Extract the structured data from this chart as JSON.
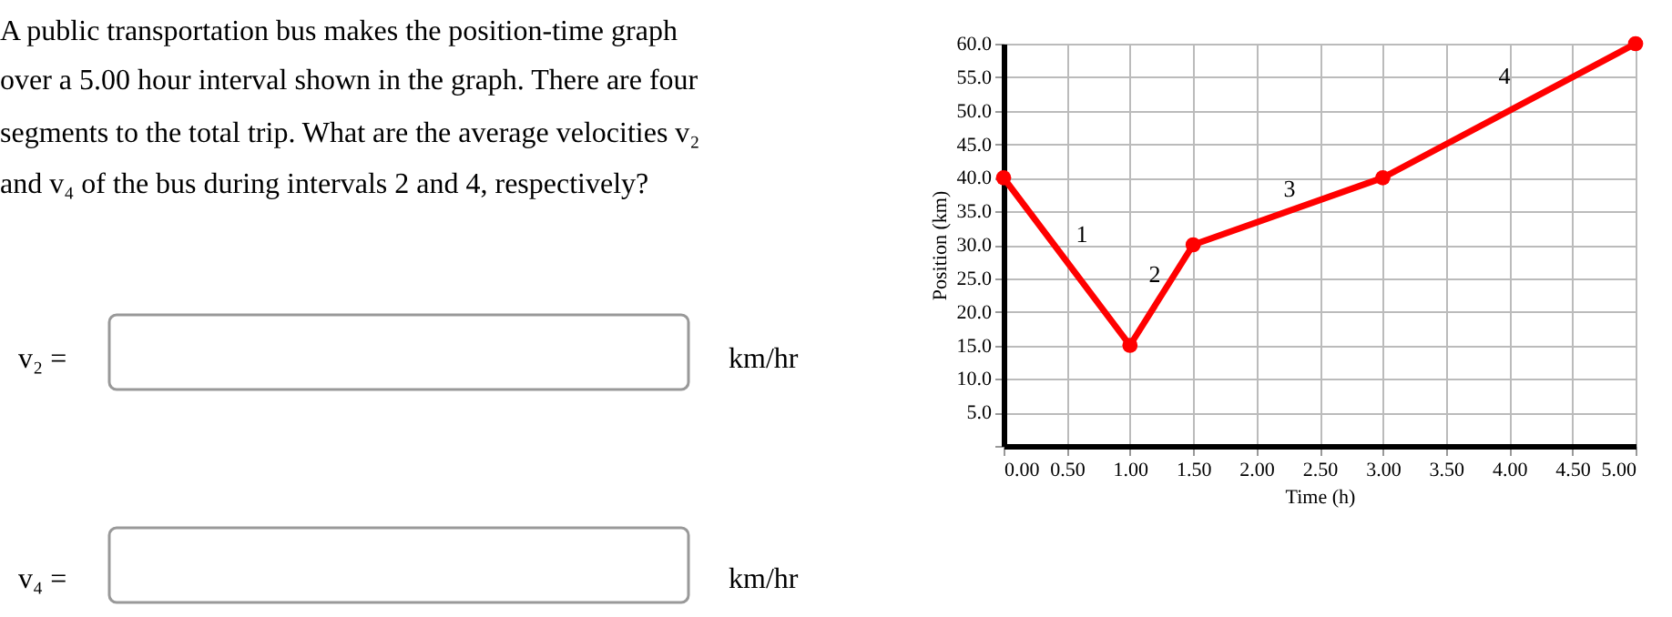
{
  "chart_data": {
    "type": "line",
    "xlabel": "Time (h)",
    "ylabel": "Position (km)",
    "x": [
      0,
      1,
      1.5,
      3,
      5
    ],
    "series": [
      {
        "color": "#ff0000",
        "values": [
          40,
          15,
          30,
          40,
          60
        ]
      }
    ],
    "marker": "circle",
    "line_style": "solid",
    "grid": true,
    "xlim": [
      0,
      5
    ],
    "ylim": [
      0,
      60
    ],
    "xticks": [
      {
        "value": 0,
        "label": "0.00"
      },
      {
        "value": 0.5,
        "label": "0.50"
      },
      {
        "value": 1,
        "label": "1.00"
      },
      {
        "value": 1.5,
        "label": "1.50"
      },
      {
        "value": 2,
        "label": "2.00"
      },
      {
        "value": 2.5,
        "label": "2.50"
      },
      {
        "value": 3,
        "label": "3.00"
      },
      {
        "value": 3.5,
        "label": "3.50"
      },
      {
        "value": 4,
        "label": "4.00"
      },
      {
        "value": 4.5,
        "label": "4.50"
      },
      {
        "value": 5,
        "label": "5.00"
      }
    ],
    "yticks": [
      {
        "value": 0,
        "label": null
      },
      {
        "value": 5,
        "label": "5.0"
      },
      {
        "value": 10,
        "label": "10.0"
      },
      {
        "value": 15,
        "label": "15.0"
      },
      {
        "value": 20,
        "label": "20.0"
      },
      {
        "value": 25,
        "label": "25.0"
      },
      {
        "value": 30,
        "label": "30.0"
      },
      {
        "value": 35,
        "label": "35.0"
      },
      {
        "value": 40,
        "label": "40.0"
      },
      {
        "value": 45,
        "label": "45.0"
      },
      {
        "value": 50,
        "label": "50.0"
      },
      {
        "value": 55,
        "label": "55.0"
      },
      {
        "value": 60,
        "label": "60.0"
      }
    ],
    "annotations": [
      "A public transportation bus makes the position-time graph",
      "over a 5.00 hour interval shown in the graph. There are four",
      "segments to the total trip. What are the average velocities v₂",
      "and v₄ of the bus during intervals 2 and 4, respectively?",
      "v₂ =",
      "km/hr",
      "v₄ =",
      "km/hr",
      "1",
      "2",
      "3",
      "4"
    ]
  }
}
